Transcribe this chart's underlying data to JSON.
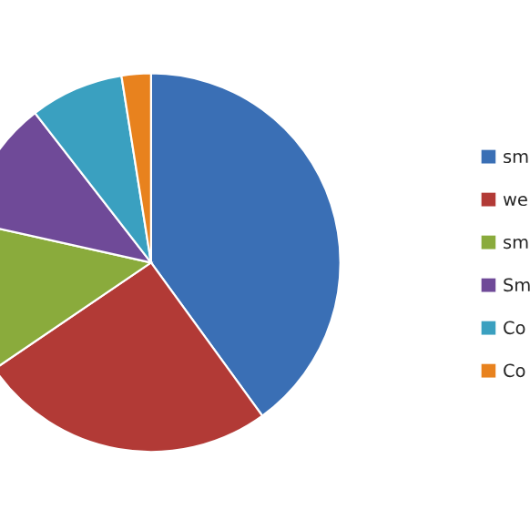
{
  "chart_data": {
    "type": "pie",
    "categories": [
      "sm",
      "we",
      "sm",
      "Sm",
      "Co",
      "Co"
    ],
    "values": [
      40,
      25.5,
      13,
      11,
      8,
      2.5
    ],
    "colors": [
      "#3a6fb5",
      "#b23a36",
      "#8aab3c",
      "#6f4a98",
      "#3aa0c0",
      "#e8821e"
    ],
    "legend": "right"
  }
}
